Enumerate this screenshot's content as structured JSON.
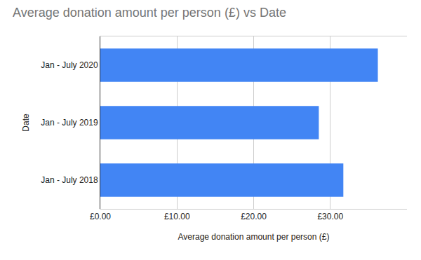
{
  "chart_data": {
    "type": "bar",
    "orientation": "horizontal",
    "title": "Average donation amount per person (£) vs Date",
    "x_label": "Average donation amount per person (£)",
    "y_label": "Date",
    "categories": [
      "Jan - July 2018",
      "Jan - July 2019",
      "Jan - July 2020"
    ],
    "values": [
      31.7,
      28.5,
      36.2
    ],
    "color": "#4285f4",
    "xlim": [
      0,
      40
    ],
    "xticks": [
      {
        "value": 0,
        "label": "£0.00"
      },
      {
        "value": 10,
        "label": "£10.00"
      },
      {
        "value": 20,
        "label": "£20.00"
      },
      {
        "value": 30,
        "label": "£30.00"
      }
    ],
    "grid": true
  }
}
